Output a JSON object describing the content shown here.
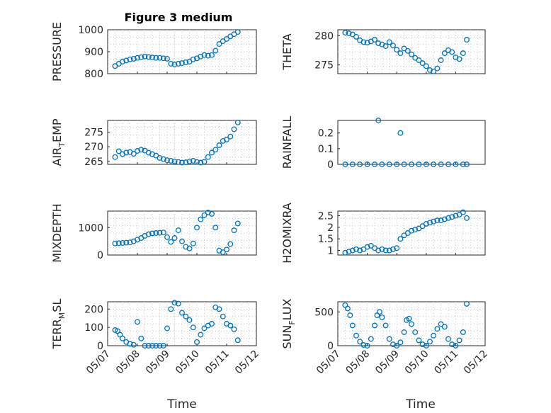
{
  "figure": {
    "title": "Figure 3 medium",
    "xlabel": "Time"
  },
  "colors": {
    "marker": "#0072BD"
  },
  "chart_data": [
    {
      "type": "scatter",
      "ylabel": "PRESSURE",
      "ylabel_sub": null,
      "xlim": [
        "05/07",
        "05/12"
      ],
      "ylim": [
        800,
        1000
      ],
      "yticks": [
        800,
        900,
        1000
      ],
      "xticks": [
        "05/07",
        "05/08",
        "05/09",
        "05/10",
        "05/11",
        "05/12"
      ],
      "grid": true,
      "x": [
        "05/07 06:00",
        "05/07 09:00",
        "05/07 12:00",
        "05/07 15:00",
        "05/07 18:00",
        "05/07 21:00",
        "05/08 00:00",
        "05/08 03:00",
        "05/08 06:00",
        "05/08 09:00",
        "05/08 12:00",
        "05/08 15:00",
        "05/08 18:00",
        "05/08 21:00",
        "05/09 00:00",
        "05/09 03:00",
        "05/09 06:00",
        "05/09 09:00",
        "05/09 12:00",
        "05/09 15:00",
        "05/09 18:00",
        "05/09 21:00",
        "05/10 00:00",
        "05/10 03:00",
        "05/10 06:00",
        "05/10 09:00",
        "05/10 12:00",
        "05/10 15:00",
        "05/10 18:00",
        "05/10 21:00",
        "05/11 00:00",
        "05/11 03:00",
        "05/11 06:00",
        "05/11 09:00"
      ],
      "y": [
        835,
        845,
        855,
        860,
        865,
        868,
        872,
        875,
        878,
        876,
        874,
        872,
        872,
        870,
        868,
        845,
        842,
        845,
        848,
        852,
        855,
        865,
        870,
        878,
        885,
        882,
        885,
        905,
        935,
        948,
        958,
        970,
        980,
        990
      ]
    },
    {
      "type": "scatter",
      "ylabel": "THETA",
      "ylabel_sub": null,
      "xlim": [
        "05/07",
        "05/12"
      ],
      "ylim": [
        273.5,
        281
      ],
      "yticks": [
        275,
        280
      ],
      "xticks": [
        "05/07",
        "05/08",
        "05/09",
        "05/10",
        "05/11",
        "05/12"
      ],
      "grid": true,
      "x": [
        "05/07 06:00",
        "05/07 09:00",
        "05/07 12:00",
        "05/07 15:00",
        "05/07 18:00",
        "05/07 21:00",
        "05/08 00:00",
        "05/08 03:00",
        "05/08 06:00",
        "05/08 09:00",
        "05/08 12:00",
        "05/08 15:00",
        "05/08 18:00",
        "05/08 21:00",
        "05/09 00:00",
        "05/09 03:00",
        "05/09 06:00",
        "05/09 09:00",
        "05/09 12:00",
        "05/09 15:00",
        "05/09 18:00",
        "05/09 21:00",
        "05/10 00:00",
        "05/10 03:00",
        "05/10 06:00",
        "05/10 09:00",
        "05/10 12:00",
        "05/10 15:00",
        "05/10 18:00",
        "05/10 21:00",
        "05/11 00:00",
        "05/11 03:00",
        "05/11 06:00",
        "05/11 09:00"
      ],
      "y": [
        280.5,
        280.4,
        280.2,
        279.8,
        279.2,
        278.9,
        278.8,
        279.0,
        279.3,
        278.7,
        278.5,
        278.2,
        278.9,
        278.3,
        277.6,
        277.0,
        277.8,
        277.4,
        276.8,
        276.2,
        275.8,
        275.3,
        274.8,
        274.1,
        273.9,
        274.4,
        275.8,
        277.0,
        277.5,
        277.2,
        276.3,
        276.0,
        277.0,
        279.3
      ]
    },
    {
      "type": "scatter",
      "ylabel": "AIR",
      "ylabel_sub": "T",
      "ylabel_after": "EMP",
      "xlim": [
        "05/07",
        "05/12"
      ],
      "ylim": [
        264,
        279
      ],
      "yticks": [
        265,
        270,
        275
      ],
      "xticks": [
        "05/07",
        "05/08",
        "05/09",
        "05/10",
        "05/11",
        "05/12"
      ],
      "grid": true,
      "x": [
        "05/07 06:00",
        "05/07 09:00",
        "05/07 12:00",
        "05/07 15:00",
        "05/07 18:00",
        "05/07 21:00",
        "05/08 00:00",
        "05/08 03:00",
        "05/08 06:00",
        "05/08 09:00",
        "05/08 12:00",
        "05/08 15:00",
        "05/08 18:00",
        "05/08 21:00",
        "05/09 00:00",
        "05/09 03:00",
        "05/09 06:00",
        "05/09 09:00",
        "05/09 12:00",
        "05/09 15:00",
        "05/09 18:00",
        "05/09 21:00",
        "05/10 00:00",
        "05/10 03:00",
        "05/10 06:00",
        "05/10 09:00",
        "05/10 12:00",
        "05/10 15:00",
        "05/10 18:00",
        "05/10 21:00",
        "05/11 00:00",
        "05/11 03:00",
        "05/11 06:00",
        "05/11 09:00"
      ],
      "y": [
        266.5,
        268.5,
        267.5,
        268.0,
        268.2,
        267.6,
        268.6,
        269.0,
        268.7,
        268.0,
        267.5,
        267.0,
        266.2,
        265.8,
        265.4,
        265.2,
        265.0,
        264.8,
        264.6,
        264.7,
        265.0,
        265.2,
        264.8,
        264.6,
        264.9,
        266.5,
        268.0,
        269.0,
        270.5,
        272.0,
        272.5,
        273.5,
        276.0,
        278.3
      ]
    },
    {
      "type": "scatter",
      "ylabel": "RAINFALL",
      "ylabel_sub": null,
      "xlim": [
        "05/07",
        "05/12"
      ],
      "ylim": [
        0,
        0.28
      ],
      "yticks": [
        0,
        0.1,
        0.2
      ],
      "xticks": [
        "05/07",
        "05/08",
        "05/09",
        "05/10",
        "05/11",
        "05/12"
      ],
      "grid": false,
      "x": [
        "05/07 06:00",
        "05/07 12:00",
        "05/07 18:00",
        "05/08 00:00",
        "05/08 06:00",
        "05/08 09:00",
        "05/08 12:00",
        "05/08 18:00",
        "05/09 00:00",
        "05/09 03:00",
        "05/09 06:00",
        "05/09 12:00",
        "05/09 18:00",
        "05/10 00:00",
        "05/10 06:00",
        "05/10 12:00",
        "05/10 18:00",
        "05/11 00:00",
        "05/11 06:00",
        "05/11 09:00"
      ],
      "y": [
        0,
        0,
        0,
        0,
        0,
        0.28,
        0,
        0,
        0,
        0.2,
        0,
        0,
        0,
        0,
        0,
        0,
        0,
        0,
        0,
        0
      ]
    },
    {
      "type": "scatter",
      "ylabel": "MIXDEPTH",
      "ylabel_sub": null,
      "xlim": [
        "05/07",
        "05/12"
      ],
      "ylim": [
        0,
        1600
      ],
      "yticks": [
        0,
        1000
      ],
      "xticks": [
        "05/07",
        "05/08",
        "05/09",
        "05/10",
        "05/11",
        "05/12"
      ],
      "grid": true,
      "x": [
        "05/07 06:00",
        "05/07 09:00",
        "05/07 12:00",
        "05/07 15:00",
        "05/07 18:00",
        "05/07 21:00",
        "05/08 00:00",
        "05/08 03:00",
        "05/08 06:00",
        "05/08 09:00",
        "05/08 12:00",
        "05/08 15:00",
        "05/08 18:00",
        "05/08 21:00",
        "05/09 00:00",
        "05/09 03:00",
        "05/09 06:00",
        "05/09 09:00",
        "05/09 12:00",
        "05/09 15:00",
        "05/09 18:00",
        "05/09 21:00",
        "05/10 00:00",
        "05/10 03:00",
        "05/10 06:00",
        "05/10 09:00",
        "05/10 12:00",
        "05/10 15:00",
        "05/10 18:00",
        "05/10 21:00",
        "05/11 00:00",
        "05/11 03:00",
        "05/11 06:00",
        "05/11 09:00"
      ],
      "y": [
        420,
        430,
        440,
        450,
        460,
        500,
        560,
        620,
        700,
        760,
        790,
        800,
        810,
        820,
        650,
        480,
        620,
        900,
        500,
        300,
        240,
        420,
        1000,
        1300,
        1450,
        1550,
        1500,
        1000,
        160,
        100,
        200,
        400,
        900,
        1150
      ]
    },
    {
      "type": "scatter",
      "ylabel": "H2OMIXRA",
      "ylabel_sub": null,
      "xlim": [
        "05/07",
        "05/12"
      ],
      "ylim": [
        0.8,
        2.7
      ],
      "yticks": [
        1,
        1.5,
        2,
        2.5
      ],
      "xticks": [
        "05/07",
        "05/08",
        "05/09",
        "05/10",
        "05/11",
        "05/12"
      ],
      "grid": true,
      "x": [
        "05/07 06:00",
        "05/07 09:00",
        "05/07 12:00",
        "05/07 15:00",
        "05/07 18:00",
        "05/07 21:00",
        "05/08 00:00",
        "05/08 03:00",
        "05/08 06:00",
        "05/08 09:00",
        "05/08 12:00",
        "05/08 15:00",
        "05/08 18:00",
        "05/08 21:00",
        "05/09 00:00",
        "05/09 03:00",
        "05/09 06:00",
        "05/09 09:00",
        "05/09 12:00",
        "05/09 15:00",
        "05/09 18:00",
        "05/09 21:00",
        "05/10 00:00",
        "05/10 03:00",
        "05/10 06:00",
        "05/10 09:00",
        "05/10 12:00",
        "05/10 15:00",
        "05/10 18:00",
        "05/10 21:00",
        "05/11 00:00",
        "05/11 03:00",
        "05/11 06:00",
        "05/11 09:00"
      ],
      "y": [
        0.9,
        0.95,
        1.0,
        1.05,
        1.0,
        1.05,
        1.15,
        1.2,
        1.1,
        1.0,
        1.05,
        1.0,
        1.0,
        1.05,
        1.1,
        1.5,
        1.65,
        1.75,
        1.85,
        1.9,
        1.95,
        2.05,
        2.15,
        2.2,
        2.25,
        2.3,
        2.3,
        2.35,
        2.4,
        2.45,
        2.5,
        2.55,
        2.65,
        2.4
      ]
    },
    {
      "type": "scatter",
      "ylabel": "TERR",
      "ylabel_sub": "M",
      "ylabel_after": "SL",
      "xlim": [
        "05/07",
        "05/12"
      ],
      "ylim": [
        0,
        240
      ],
      "yticks": [
        0,
        100,
        200
      ],
      "xticks": [
        "05/07",
        "05/08",
        "05/09",
        "05/10",
        "05/11",
        "05/12"
      ],
      "grid": true,
      "x": [
        "05/07 06:00",
        "05/07 08:00",
        "05/07 10:00",
        "05/07 12:00",
        "05/07 15:00",
        "05/07 18:00",
        "05/07 21:00",
        "05/08 00:00",
        "05/08 03:00",
        "05/08 06:00",
        "05/08 09:00",
        "05/08 12:00",
        "05/08 15:00",
        "05/08 18:00",
        "05/08 21:00",
        "05/09 00:00",
        "05/09 03:00",
        "05/09 06:00",
        "05/09 09:00",
        "05/09 12:00",
        "05/09 15:00",
        "05/09 18:00",
        "05/09 21:00",
        "05/10 00:00",
        "05/10 03:00",
        "05/10 06:00",
        "05/10 09:00",
        "05/10 12:00",
        "05/10 15:00",
        "05/10 18:00",
        "05/10 21:00",
        "05/11 00:00",
        "05/11 03:00",
        "05/11 06:00",
        "05/11 09:00"
      ],
      "y": [
        85,
        80,
        60,
        40,
        20,
        10,
        5,
        130,
        40,
        0,
        0,
        0,
        0,
        0,
        0,
        95,
        200,
        235,
        230,
        180,
        160,
        140,
        100,
        20,
        60,
        95,
        110,
        120,
        210,
        200,
        160,
        120,
        110,
        90,
        30
      ]
    },
    {
      "type": "scatter",
      "ylabel": "SUN",
      "ylabel_sub": "F",
      "ylabel_after": "LUX",
      "xlim": [
        "05/07",
        "05/12"
      ],
      "ylim": [
        0,
        650
      ],
      "yticks": [
        0,
        500
      ],
      "xticks": [
        "05/07",
        "05/08",
        "05/09",
        "05/10",
        "05/11",
        "05/12"
      ],
      "grid": true,
      "x": [
        "05/07 06:00",
        "05/07 08:00",
        "05/07 10:00",
        "05/07 12:00",
        "05/07 15:00",
        "05/07 18:00",
        "05/07 21:00",
        "05/08 00:00",
        "05/08 03:00",
        "05/08 06:00",
        "05/08 08:00",
        "05/08 10:00",
        "05/08 12:00",
        "05/08 15:00",
        "05/08 18:00",
        "05/08 21:00",
        "05/09 00:00",
        "05/09 03:00",
        "05/09 06:00",
        "05/09 08:00",
        "05/09 10:00",
        "05/09 12:00",
        "05/09 15:00",
        "05/09 18:00",
        "05/09 21:00",
        "05/10 00:00",
        "05/10 03:00",
        "05/10 06:00",
        "05/10 09:00",
        "05/10 12:00",
        "05/10 15:00",
        "05/10 18:00",
        "05/10 21:00",
        "05/11 00:00",
        "05/11 03:00",
        "05/11 06:00",
        "05/11 09:00"
      ],
      "y": [
        600,
        550,
        450,
        300,
        150,
        60,
        10,
        0,
        100,
        300,
        450,
        500,
        420,
        300,
        100,
        20,
        0,
        50,
        200,
        380,
        400,
        320,
        200,
        80,
        20,
        0,
        60,
        150,
        250,
        320,
        280,
        100,
        20,
        0,
        80,
        200,
        620
      ]
    }
  ]
}
